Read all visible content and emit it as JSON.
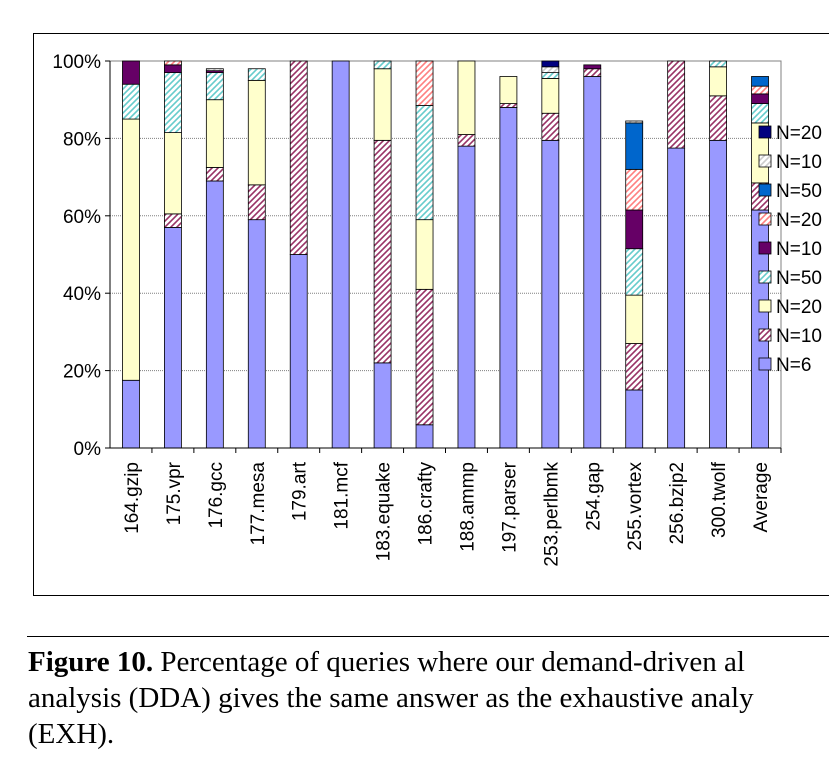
{
  "chart_data": {
    "type": "bar",
    "stacked": true,
    "title": "",
    "xlabel": "",
    "ylabel": "",
    "ylim": [
      0,
      100
    ],
    "yticks": [
      "0%",
      "20%",
      "40%",
      "60%",
      "80%",
      "100%"
    ],
    "grid": true,
    "legend_position": "right",
    "categories": [
      "164.gzip",
      "175.vpr",
      "176.gcc",
      "177.mesa",
      "179.art",
      "181.mcf",
      "183.equake",
      "186.crafty",
      "188.ammp",
      "197.parser",
      "253.perlbmk",
      "254.gap",
      "255.vortex",
      "256.bzip2",
      "300.twolf",
      "Average"
    ],
    "series": [
      {
        "name": "N=6",
        "color": "#9999ff",
        "pattern": "solid",
        "values": [
          17.5,
          57,
          69,
          59,
          50,
          100,
          22,
          6,
          78,
          88,
          79.5,
          96,
          15,
          77.5,
          79.5,
          61.5
        ]
      },
      {
        "name": "N=10",
        "color": "#993366",
        "pattern": "hatch",
        "values": [
          0,
          3.5,
          3.5,
          9,
          50,
          0,
          57.5,
          35,
          3,
          1,
          7,
          2,
          12,
          22.5,
          11.5,
          7
        ]
      },
      {
        "name": "N=20",
        "color": "#ffffcc",
        "pattern": "solid",
        "values": [
          67.5,
          21,
          17.5,
          27,
          0,
          0,
          18.5,
          18,
          19,
          7,
          9,
          0,
          12.5,
          0,
          7.5,
          15.5
        ]
      },
      {
        "name": "N=50",
        "color": "#66cccc",
        "pattern": "hatch",
        "values": [
          9,
          15.5,
          7,
          3,
          0,
          0,
          2,
          29.5,
          0,
          0,
          1.5,
          0,
          12,
          0,
          1.5,
          5
        ]
      },
      {
        "name": "N=10",
        "color": "#660066",
        "pattern": "solid",
        "values": [
          6,
          2,
          0.5,
          0,
          0,
          0,
          0,
          0,
          0,
          0,
          0,
          1,
          10,
          0,
          0,
          2.5
        ]
      },
      {
        "name": "N=20",
        "color": "#ff8080",
        "pattern": "hatch",
        "values": [
          0,
          1,
          0,
          0,
          0,
          0,
          0,
          11.5,
          0,
          0,
          0,
          0,
          10.5,
          0,
          0,
          2
        ]
      },
      {
        "name": "N=50",
        "color": "#0066cc",
        "pattern": "solid",
        "values": [
          0,
          0,
          0,
          0,
          0,
          0,
          0,
          0,
          0,
          0,
          0,
          0,
          12,
          0,
          0,
          2.5
        ]
      },
      {
        "name": "N=10",
        "color": "#cccccc",
        "pattern": "hatch",
        "values": [
          0,
          0,
          0.5,
          0,
          0,
          0,
          0,
          0,
          0,
          0,
          1.5,
          0,
          0.5,
          0,
          0,
          0
        ]
      },
      {
        "name": "N=20",
        "color": "#000080",
        "pattern": "solid",
        "values": [
          0,
          0,
          0,
          0,
          0,
          0,
          0,
          0,
          0,
          0,
          1.5,
          0,
          0,
          0,
          0,
          0
        ]
      }
    ]
  },
  "caption": {
    "label": "Figure 10.",
    "line1": "Percentage of queries where our demand-driven al",
    "line2": "analysis (DDA) gives the same answer as the exhaustive analy",
    "line3": "(EXH)."
  }
}
